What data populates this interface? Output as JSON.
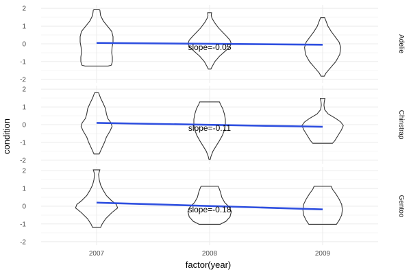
{
  "chart_data": {
    "type": "violin",
    "xlabel": "factor(year)",
    "ylabel": "condition",
    "categories": [
      "2007",
      "2008",
      "2009"
    ],
    "ylim": [
      -2.2,
      2.2
    ],
    "y_ticks": [
      -2,
      -1,
      0,
      1,
      2
    ],
    "grid": true,
    "facets": [
      {
        "name": "Adelie",
        "slope_label": "slope=-0.05",
        "fit": {
          "start": 0.05,
          "end": -0.05
        },
        "violins": [
          {
            "x": "2007",
            "profile": [
              [
                -1.25,
                0.35
              ],
              [
                -1.2,
                0.45
              ],
              [
                -1.0,
                0.48
              ],
              [
                -0.75,
                0.48
              ],
              [
                -0.5,
                0.46
              ],
              [
                -0.2,
                0.47
              ],
              [
                0.1,
                0.5
              ],
              [
                0.4,
                0.5
              ],
              [
                0.7,
                0.46
              ],
              [
                1.0,
                0.33
              ],
              [
                1.3,
                0.2
              ],
              [
                1.6,
                0.12
              ],
              [
                1.9,
                0.1
              ],
              [
                1.95,
                0.07
              ],
              [
                1.95,
                0.0
              ]
            ]
          },
          {
            "x": "2008",
            "profile": [
              [
                -1.42,
                0.04
              ],
              [
                -1.3,
                0.07
              ],
              [
                -1.0,
                0.16
              ],
              [
                -0.7,
                0.3
              ],
              [
                -0.45,
                0.45
              ],
              [
                -0.2,
                0.6
              ],
              [
                0.0,
                0.66
              ],
              [
                0.2,
                0.62
              ],
              [
                0.4,
                0.53
              ],
              [
                0.65,
                0.4
              ],
              [
                0.9,
                0.27
              ],
              [
                1.2,
                0.15
              ],
              [
                1.45,
                0.07
              ],
              [
                1.6,
                0.05
              ],
              [
                1.75,
                0.06
              ],
              [
                1.75,
                0.0
              ]
            ]
          },
          {
            "x": "2009",
            "profile": [
              [
                -1.82,
                0.05
              ],
              [
                -1.65,
                0.1
              ],
              [
                -1.3,
                0.26
              ],
              [
                -1.0,
                0.4
              ],
              [
                -0.6,
                0.52
              ],
              [
                -0.2,
                0.55
              ],
              [
                0.1,
                0.5
              ],
              [
                0.4,
                0.38
              ],
              [
                0.7,
                0.26
              ],
              [
                1.0,
                0.16
              ],
              [
                1.3,
                0.1
              ],
              [
                1.48,
                0.06
              ],
              [
                1.48,
                0.0
              ]
            ]
          }
        ]
      },
      {
        "name": "Chinstrap",
        "slope_label": "slope=-0.11",
        "fit": {
          "start": 0.1,
          "end": -0.12
        },
        "violins": [
          {
            "x": "2007",
            "profile": [
              [
                -1.65,
                0.08
              ],
              [
                -1.4,
                0.14
              ],
              [
                -1.0,
                0.24
              ],
              [
                -0.7,
                0.3
              ],
              [
                -0.35,
                0.41
              ],
              [
                -0.1,
                0.47
              ],
              [
                0.1,
                0.44
              ],
              [
                0.35,
                0.34
              ],
              [
                0.6,
                0.3
              ],
              [
                0.9,
                0.27
              ],
              [
                1.2,
                0.2
              ],
              [
                1.5,
                0.12
              ],
              [
                1.75,
                0.07
              ],
              [
                1.8,
                0.06
              ],
              [
                1.8,
                0.0
              ]
            ]
          },
          {
            "x": "2008",
            "profile": [
              [
                -1.95,
                0.02
              ],
              [
                -1.8,
                0.04
              ],
              [
                -1.5,
                0.1
              ],
              [
                -1.2,
                0.2
              ],
              [
                -0.9,
                0.3
              ],
              [
                -0.6,
                0.39
              ],
              [
                -0.3,
                0.45
              ],
              [
                0.0,
                0.48
              ],
              [
                0.3,
                0.48
              ],
              [
                0.6,
                0.45
              ],
              [
                0.9,
                0.4
              ],
              [
                1.15,
                0.33
              ],
              [
                1.28,
                0.3
              ],
              [
                1.28,
                0.0
              ]
            ]
          },
          {
            "x": "2009",
            "profile": [
              [
                -1.05,
                0.3
              ],
              [
                -0.9,
                0.37
              ],
              [
                -0.6,
                0.47
              ],
              [
                -0.3,
                0.57
              ],
              [
                -0.05,
                0.63
              ],
              [
                0.15,
                0.55
              ],
              [
                0.35,
                0.4
              ],
              [
                0.6,
                0.17
              ],
              [
                0.85,
                0.06
              ],
              [
                1.1,
                0.04
              ],
              [
                1.3,
                0.05
              ],
              [
                1.48,
                0.07
              ],
              [
                1.48,
                0.0
              ]
            ]
          }
        ]
      },
      {
        "name": "Gentoo",
        "slope_label": "slope=-0.18",
        "fit": {
          "start": 0.2,
          "end": -0.18
        },
        "violins": [
          {
            "x": "2007",
            "profile": [
              [
                -1.2,
                0.12
              ],
              [
                -1.0,
                0.17
              ],
              [
                -0.7,
                0.28
              ],
              [
                -0.35,
                0.47
              ],
              [
                -0.1,
                0.64
              ],
              [
                0.1,
                0.6
              ],
              [
                0.3,
                0.46
              ],
              [
                0.6,
                0.3
              ],
              [
                0.9,
                0.2
              ],
              [
                1.2,
                0.12
              ],
              [
                1.5,
                0.08
              ],
              [
                1.8,
                0.06
              ],
              [
                2.05,
                0.1
              ],
              [
                2.05,
                0.0
              ]
            ]
          },
          {
            "x": "2008",
            "profile": [
              [
                -1.02,
                0.32
              ],
              [
                -0.85,
                0.5
              ],
              [
                -0.6,
                0.62
              ],
              [
                -0.3,
                0.66
              ],
              [
                -0.05,
                0.6
              ],
              [
                0.2,
                0.46
              ],
              [
                0.5,
                0.37
              ],
              [
                0.8,
                0.33
              ],
              [
                1.05,
                0.28
              ],
              [
                1.12,
                0.26
              ],
              [
                1.12,
                0.0
              ]
            ]
          },
          {
            "x": "2009",
            "profile": [
              [
                -1.02,
                0.42
              ],
              [
                -0.8,
                0.5
              ],
              [
                -0.5,
                0.58
              ],
              [
                -0.2,
                0.6
              ],
              [
                0.1,
                0.58
              ],
              [
                0.4,
                0.5
              ],
              [
                0.7,
                0.4
              ],
              [
                0.95,
                0.3
              ],
              [
                1.12,
                0.26
              ],
              [
                1.12,
                0.0
              ]
            ]
          }
        ]
      }
    ]
  }
}
